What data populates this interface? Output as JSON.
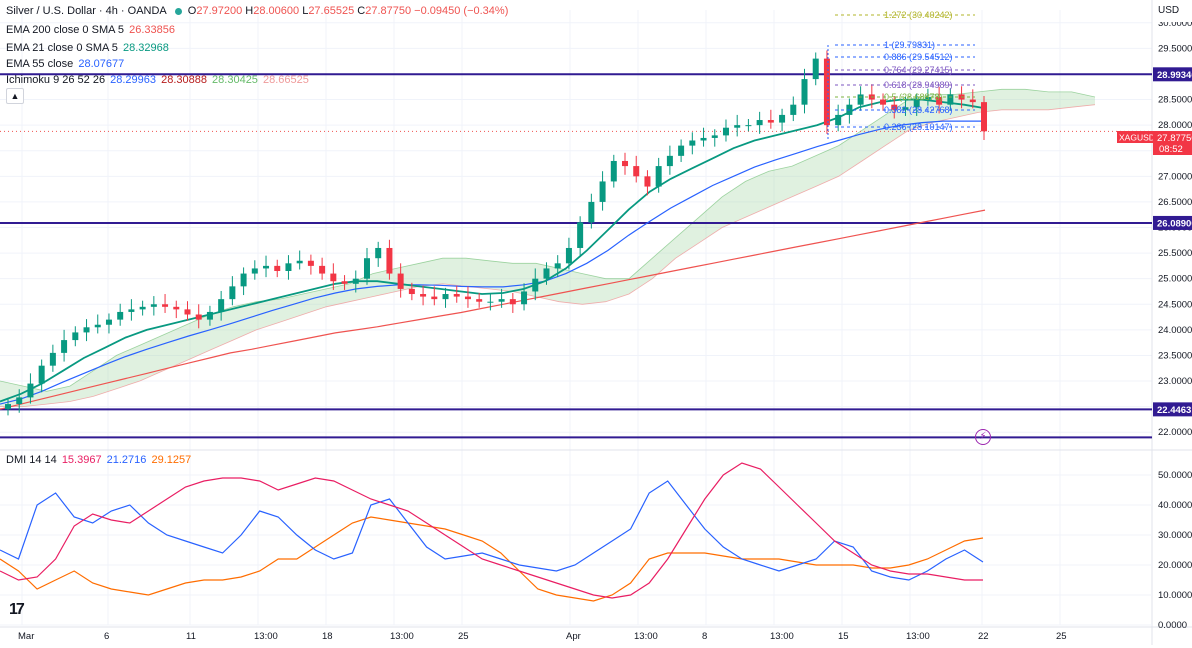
{
  "header": {
    "symbol": "Silver / U.S. Dollar · 4h · OANDA",
    "o_label": "O",
    "o": "27.97200",
    "h_label": "H",
    "h": "28.00600",
    "l_label": "L",
    "l": "27.65525",
    "c_label": "C",
    "c": "27.87750",
    "change": "−0.09450 (−0.34%)"
  },
  "indicators": {
    "ema200": {
      "label": "EMA 200 close 0 SMA 5",
      "value": "26.33856",
      "color": "#ef5350"
    },
    "ema21": {
      "label": "EMA 21 close 0 SMA 5",
      "value": "28.32968",
      "color": "#089981"
    },
    "ema55": {
      "label": "EMA 55 close",
      "value": "28.07677",
      "color": "#2962ff"
    },
    "ichimoku": {
      "label": "Ichimoku 9 26 52 26",
      "v1": "28.29963",
      "v2": "28.30888",
      "v3": "28.30425",
      "v4": "28.66525",
      "c1": "#2962ff",
      "c2": "#b71c1c",
      "c3": "#66bb6a",
      "c4": "#ef9a9a"
    },
    "dmi": {
      "label": "DMI 14 14",
      "plus": "15.3967",
      "minus": "21.2716",
      "adx": "29.1257",
      "c_plus": "#e91e63",
      "c_minus": "#2962ff",
      "c_adx": "#ff6d00"
    }
  },
  "price_axis": {
    "currency": "USD",
    "ticks": [
      "30.00000",
      "29.50000",
      "29.00000",
      "28.50000",
      "28.00000",
      "27.50000",
      "27.00000",
      "26.50000",
      "26.00000",
      "25.50000",
      "25.00000",
      "24.50000",
      "24.00000",
      "23.50000",
      "23.00000",
      "22.50000",
      "22.00000"
    ],
    "levels": [
      "28.99340",
      "26.08900",
      "22.44631"
    ],
    "last_price_symbol": "XAGUSD",
    "last_price": "27.87750",
    "countdown": "08:52"
  },
  "dmi_axis": {
    "ticks": [
      "50.0000",
      "40.0000",
      "30.0000",
      "20.0000",
      "10.0000",
      "0.0000"
    ]
  },
  "time_axis": {
    "labels": [
      "Mar",
      "6",
      "11",
      "13:00",
      "18",
      "13:00",
      "25",
      "Apr",
      "13:00",
      "8",
      "13:00",
      "15",
      "13:00",
      "22",
      "25"
    ]
  },
  "fib": [
    {
      "label": "1.272 (30.40242)",
      "color": "#b2b52a"
    },
    {
      "label": "1 (29.79831)",
      "color": "#2962ff"
    },
    {
      "label": "0.886 (29.54512)",
      "color": "#2962ff"
    },
    {
      "label": "0.764 (29.27415)",
      "color": "#7e57c2"
    },
    {
      "label": "0.618 (28.94989)",
      "color": "#7e57c2"
    },
    {
      "label": "0.5 (28.68878)",
      "color": "#7cb342"
    },
    {
      "label": "0.382 (28.42768)",
      "color": "#2962ff"
    },
    {
      "label": "0.236 (28.10147)",
      "color": "#2962ff"
    }
  ],
  "chart_data": {
    "type": "line",
    "subtype": "candlestick",
    "price_range": [
      21.75,
      30.25
    ],
    "horizontal_levels": [
      28.9934,
      26.089,
      22.44631
    ],
    "close_series": [
      22.55,
      22.68,
      22.95,
      23.3,
      23.55,
      23.8,
      23.95,
      24.05,
      24.1,
      24.2,
      24.35,
      24.4,
      24.45,
      24.5,
      24.45,
      24.4,
      24.3,
      24.2,
      24.35,
      24.6,
      24.85,
      25.1,
      25.2,
      25.25,
      25.15,
      25.3,
      25.35,
      25.25,
      25.1,
      24.95,
      24.9,
      25.0,
      25.4,
      25.6,
      25.1,
      24.8,
      24.7,
      24.65,
      24.6,
      24.7,
      24.65,
      24.6,
      24.55,
      24.55,
      24.6,
      24.5,
      24.75,
      25.0,
      25.2,
      25.3,
      25.6,
      26.1,
      26.5,
      26.9,
      27.3,
      27.2,
      27.0,
      26.8,
      27.2,
      27.4,
      27.6,
      27.7,
      27.75,
      27.8,
      27.95,
      28.0,
      28.0,
      28.1,
      28.05,
      28.2,
      28.4,
      28.9,
      29.3,
      28.0,
      28.2,
      28.4,
      28.6,
      28.5,
      28.4,
      28.3,
      28.35,
      28.5,
      28.55,
      28.4,
      28.6,
      28.5,
      28.45,
      27.88
    ],
    "ema200": [
      22.45,
      22.55,
      22.65,
      22.75,
      22.85,
      22.95,
      23.05,
      23.15,
      23.25,
      23.35,
      23.45,
      23.55,
      23.62,
      23.7,
      23.78,
      23.86,
      23.94,
      24.0,
      24.06,
      24.13,
      24.2,
      24.27,
      24.34,
      24.42,
      24.5,
      24.58,
      24.66,
      24.74,
      24.82,
      24.9,
      24.98,
      25.06,
      25.14,
      25.22,
      25.3,
      25.38,
      25.46,
      25.54,
      25.62,
      25.7,
      25.78,
      25.86,
      25.94,
      26.02,
      26.1,
      26.18,
      26.26,
      26.34
    ],
    "ema21": [
      22.6,
      22.75,
      22.95,
      23.2,
      23.45,
      23.65,
      23.85,
      24.0,
      24.1,
      24.2,
      24.3,
      24.4,
      24.5,
      24.6,
      24.7,
      24.8,
      24.9,
      24.95,
      24.95,
      24.9,
      24.85,
      24.8,
      24.75,
      24.7,
      24.72,
      24.8,
      24.95,
      25.2,
      25.55,
      25.95,
      26.35,
      26.7,
      26.95,
      27.15,
      27.35,
      27.55,
      27.7,
      27.8,
      27.9,
      28.0,
      28.15,
      28.35,
      28.45,
      28.5,
      28.5,
      28.45,
      28.4,
      28.33
    ],
    "ema55": [
      22.55,
      22.65,
      22.8,
      22.98,
      23.15,
      23.32,
      23.48,
      23.62,
      23.75,
      23.88,
      24.0,
      24.12,
      24.25,
      24.38,
      24.5,
      24.62,
      24.72,
      24.8,
      24.85,
      24.88,
      24.88,
      24.87,
      24.85,
      24.84,
      24.84,
      24.88,
      24.95,
      25.1,
      25.3,
      25.55,
      25.85,
      26.12,
      26.38,
      26.6,
      26.82,
      27.0,
      27.18,
      27.32,
      27.45,
      27.58,
      27.7,
      27.82,
      27.92,
      28.0,
      28.05,
      28.08,
      28.08,
      28.08
    ],
    "cloud_top": [
      23.0,
      22.9,
      22.8,
      22.9,
      23.2,
      23.5,
      23.7,
      23.9,
      24.1,
      24.3,
      24.45,
      24.55,
      24.6,
      24.7,
      24.8,
      24.9,
      25.1,
      25.2,
      25.3,
      25.4,
      25.4,
      25.35,
      25.3,
      25.3,
      25.2,
      25.1,
      25.0,
      25.0,
      25.4,
      25.8,
      26.2,
      26.6,
      26.9,
      27.1,
      27.2,
      27.4,
      27.6,
      27.9,
      28.2,
      28.5,
      28.6,
      28.6,
      28.65,
      28.7,
      28.7,
      28.65,
      28.65,
      28.55
    ],
    "cloud_bottom": [
      22.5,
      22.5,
      22.55,
      22.6,
      22.7,
      22.85,
      23.0,
      23.2,
      23.4,
      23.6,
      23.8,
      24.0,
      24.15,
      24.3,
      24.45,
      24.55,
      24.65,
      24.75,
      24.85,
      24.9,
      24.85,
      24.8,
      24.75,
      24.65,
      24.55,
      24.5,
      24.55,
      24.7,
      25.0,
      25.4,
      25.7,
      26.0,
      26.2,
      26.4,
      26.6,
      26.8,
      27.0,
      27.3,
      27.6,
      27.9,
      28.05,
      28.15,
      28.25,
      28.3,
      28.3,
      28.3,
      28.35,
      28.4
    ],
    "dmi_plus": [
      18,
      15,
      16,
      22,
      33,
      37,
      35,
      34,
      38,
      42,
      46,
      48,
      49,
      49,
      48,
      45,
      47,
      49,
      48,
      45,
      42,
      40,
      38,
      34,
      30,
      26,
      22,
      20,
      18,
      16,
      14,
      12,
      10,
      9,
      10,
      14,
      22,
      32,
      42,
      50,
      54,
      52,
      46,
      40,
      34,
      28,
      24,
      20,
      18,
      17,
      17,
      16,
      15,
      15
    ],
    "dmi_minus": [
      25,
      22,
      40,
      44,
      36,
      34,
      38,
      40,
      34,
      30,
      28,
      26,
      24,
      30,
      38,
      36,
      30,
      25,
      22,
      24,
      40,
      42,
      34,
      26,
      22,
      23,
      24,
      22,
      20,
      19,
      18,
      20,
      24,
      28,
      32,
      44,
      48,
      40,
      32,
      26,
      22,
      20,
      18,
      20,
      22,
      28,
      26,
      18,
      16,
      15,
      18,
      22,
      25,
      21
    ],
    "dmi_adx": [
      22,
      18,
      12,
      15,
      18,
      14,
      12,
      11,
      10,
      12,
      14,
      15,
      15,
      16,
      18,
      22,
      22,
      26,
      30,
      34,
      36,
      35,
      34,
      33,
      32,
      30,
      28,
      24,
      18,
      12,
      10,
      9,
      8,
      10,
      14,
      22,
      24,
      24,
      24,
      23,
      22,
      22,
      22,
      21,
      20,
      20,
      20,
      19,
      19,
      20,
      22,
      25,
      28,
      29
    ]
  }
}
